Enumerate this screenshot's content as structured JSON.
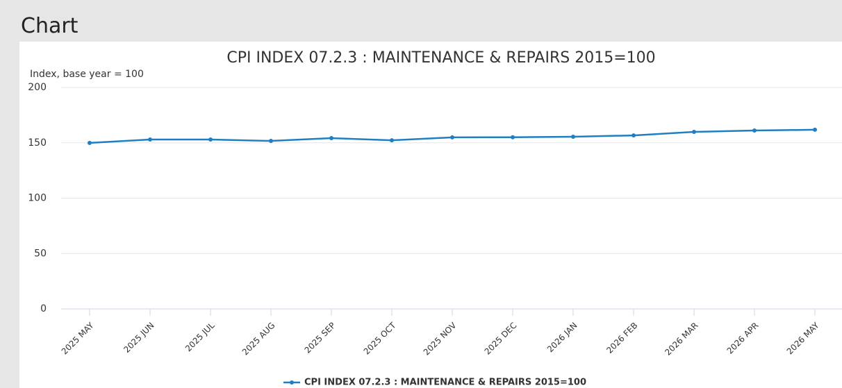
{
  "page_title": "Chart",
  "chart_data": {
    "type": "line",
    "title": "CPI INDEX 07.2.3 : MAINTENANCE & REPAIRS 2015=100",
    "y_label": "Index, base year = 100",
    "categories": [
      "2025 MAY",
      "2025 JUN",
      "2025 JUL",
      "2025 AUG",
      "2025 SEP",
      "2025 OCT",
      "2025 NOV",
      "2025 DEC",
      "2026 JAN",
      "2026 FEB",
      "2026 MAR",
      "2026 APR",
      "2026 MAY"
    ],
    "series": [
      {
        "name": "CPI INDEX 07.2.3 : MAINTENANCE & REPAIRS 2015=100",
        "color": "#1f7fc0",
        "values": [
          149.9,
          153.0,
          153.0,
          151.7,
          154.2,
          152.3,
          154.9,
          155.0,
          155.5,
          156.7,
          159.9,
          161.1,
          161.8
        ]
      }
    ],
    "ylim": [
      0,
      200
    ],
    "yticks": [
      0,
      50,
      100,
      150,
      200
    ],
    "grid": true,
    "legend": "bottom"
  }
}
